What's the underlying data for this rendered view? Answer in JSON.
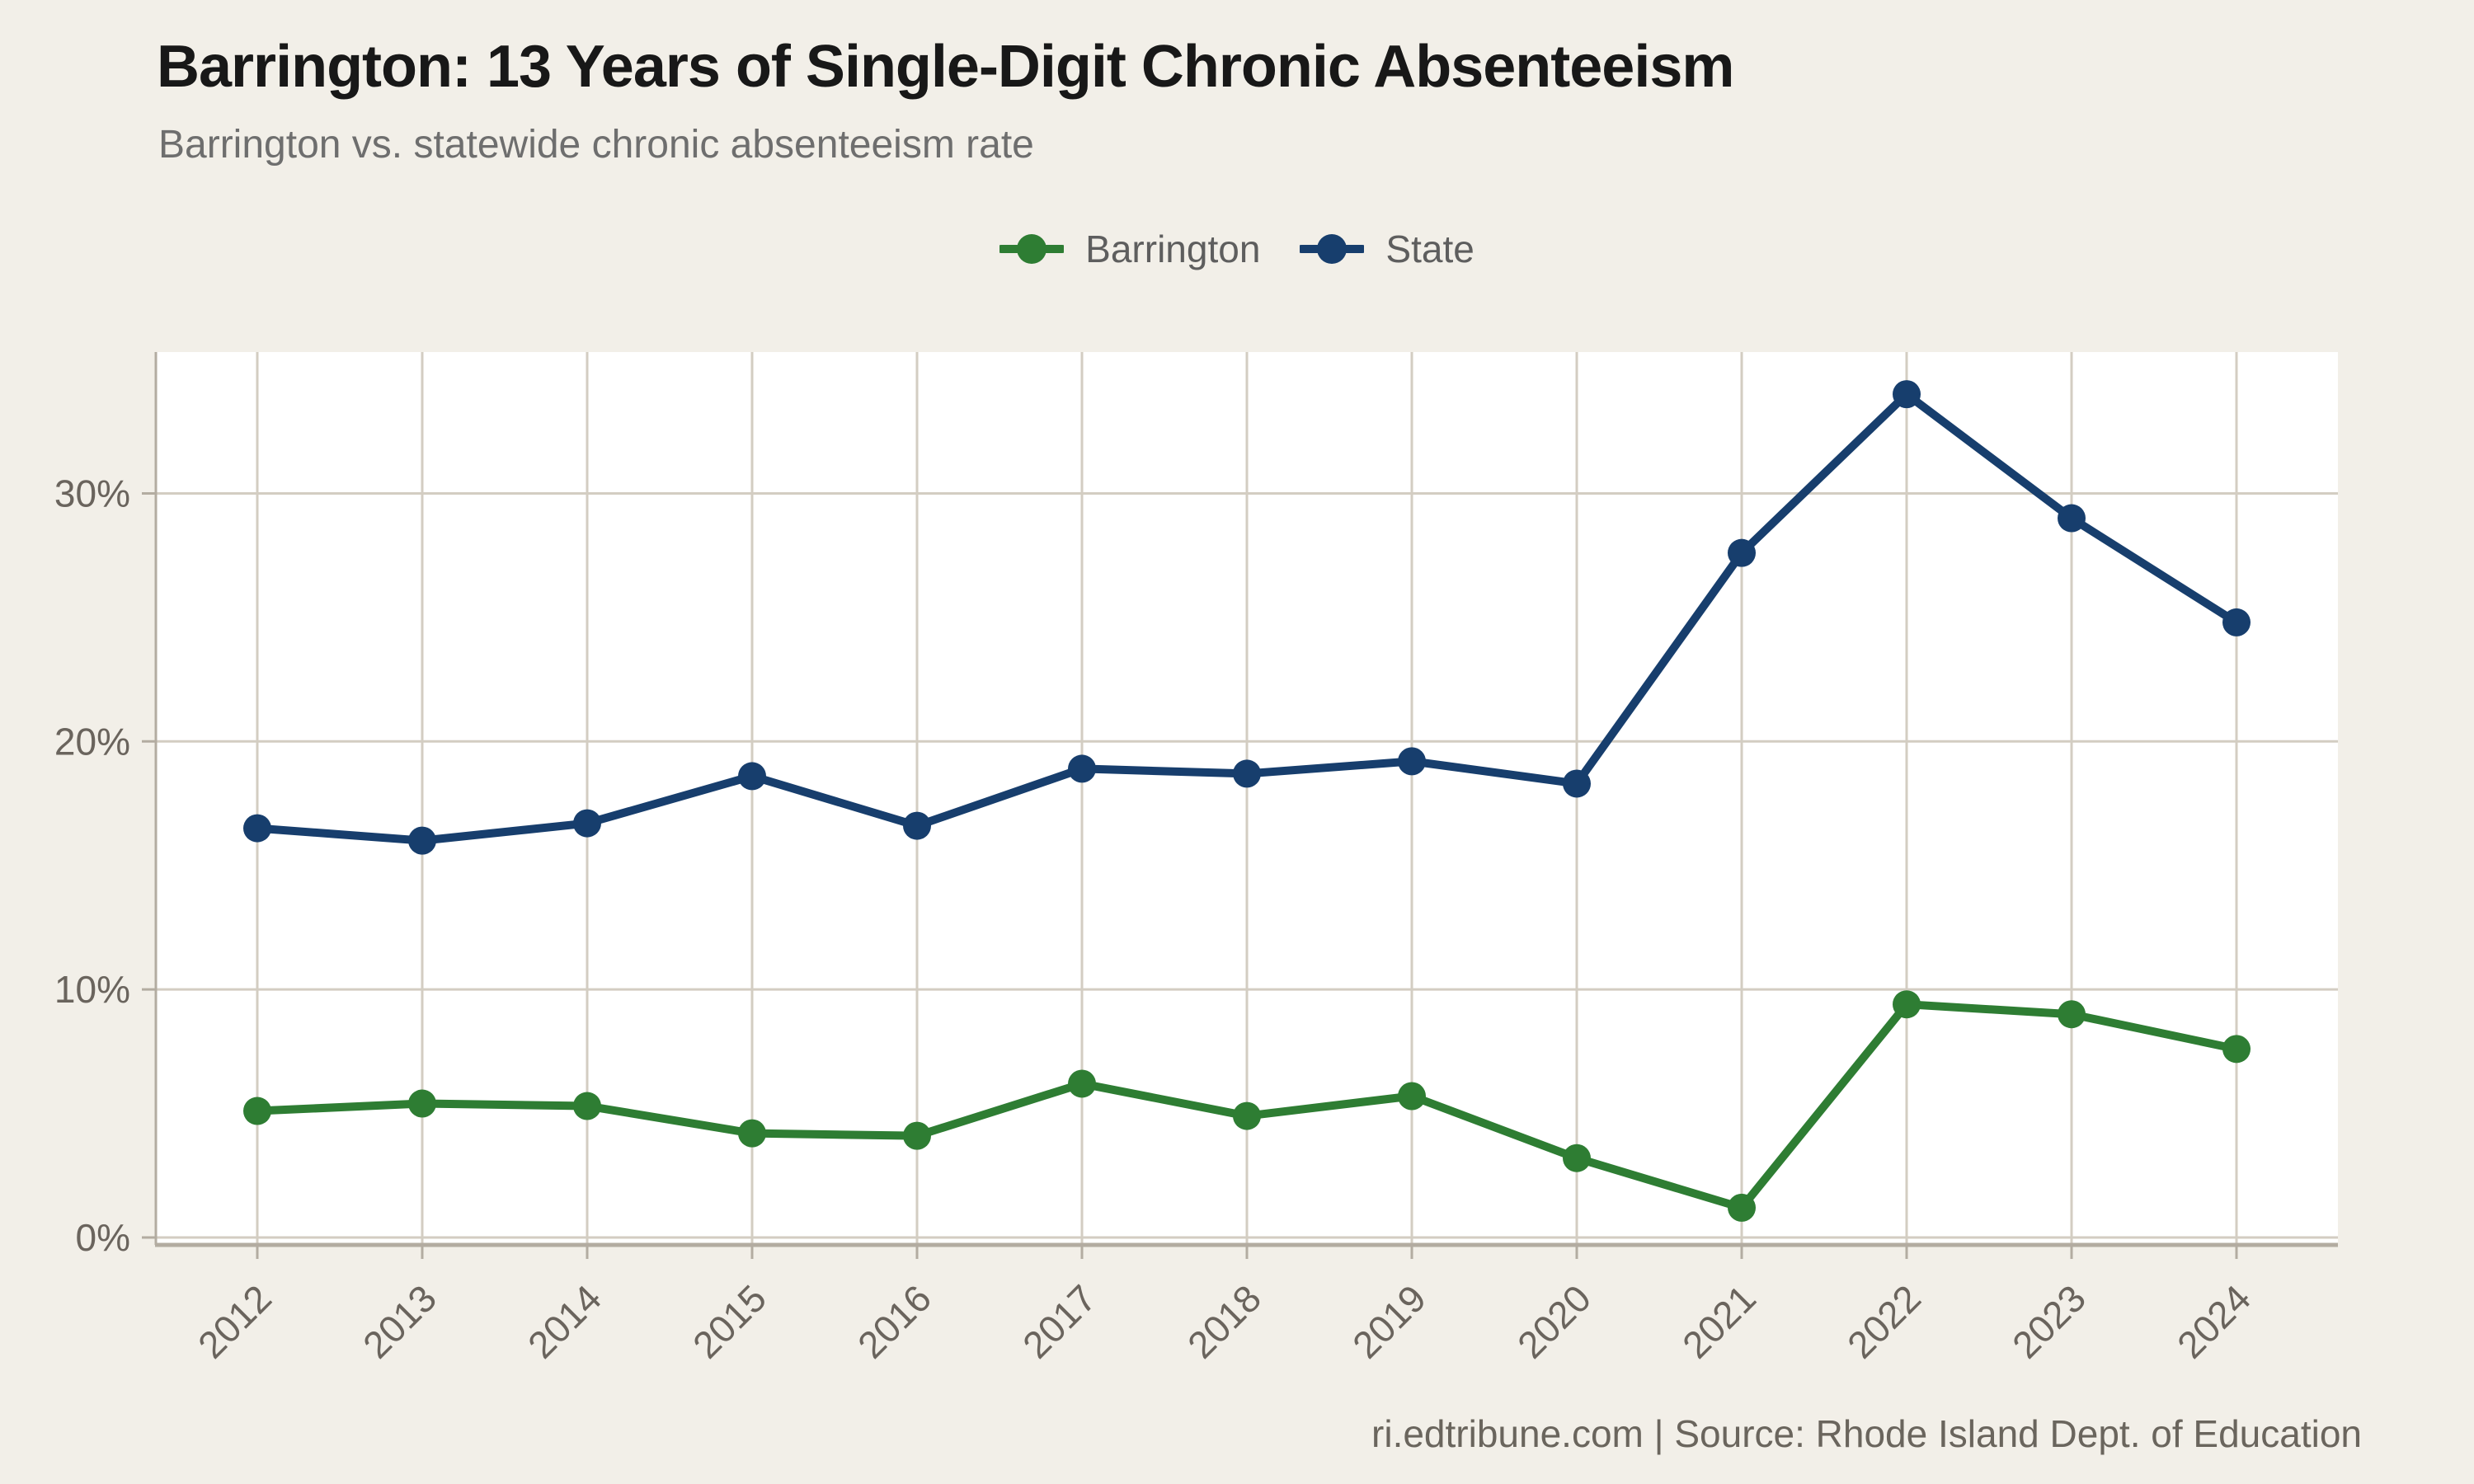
{
  "header": {
    "title": "Barrington: 13 Years of Single-Digit Chronic Absenteeism",
    "subtitle": "Barrington vs. statewide chronic absenteeism rate"
  },
  "legend": [
    {
      "label": "Barrington",
      "color": "#2E7D33"
    },
    {
      "label": "State",
      "color": "#173E6D"
    }
  ],
  "chart_data": {
    "type": "line",
    "title": "Barrington: 13 Years of Single-Digit Chronic Absenteeism",
    "subtitle": "Barrington vs. statewide chronic absenteeism rate",
    "x": [
      2012,
      2013,
      2014,
      2015,
      2016,
      2017,
      2018,
      2019,
      2020,
      2021,
      2022,
      2023,
      2024
    ],
    "series": [
      {
        "name": "Barrington",
        "color": "#2E7D33",
        "values": [
          5.1,
          5.4,
          5.3,
          4.2,
          4.1,
          6.2,
          4.9,
          5.7,
          3.2,
          1.2,
          9.4,
          9.0,
          7.6
        ]
      },
      {
        "name": "State",
        "color": "#173E6D",
        "values": [
          16.5,
          16.0,
          16.7,
          18.6,
          16.6,
          18.9,
          18.7,
          19.2,
          18.3,
          27.6,
          34.0,
          29.0,
          24.8
        ]
      }
    ],
    "xlabel": "",
    "ylabel": "",
    "yticks": [
      0,
      10,
      20,
      30
    ],
    "ytick_format": "percent",
    "ylim": [
      -0.3,
      35.7
    ],
    "grid": true,
    "legend_position": "top-center"
  },
  "footer": {
    "credit": "ri.edtribune.com | Source: Rhode Island Dept. of Education"
  },
  "colors": {
    "background": "#F2EFE8",
    "plot_background": "#FFFFFF",
    "gridline": "#D3CDC2",
    "axis": "#B3ACA1",
    "tick_label": "#6A645D",
    "title": "#181818",
    "subtitle": "#6E6E6E",
    "legend_text": "#5E5E5E",
    "footer_text": "#6A655D",
    "barrington": "#2E7D33",
    "state": "#173E6D"
  }
}
